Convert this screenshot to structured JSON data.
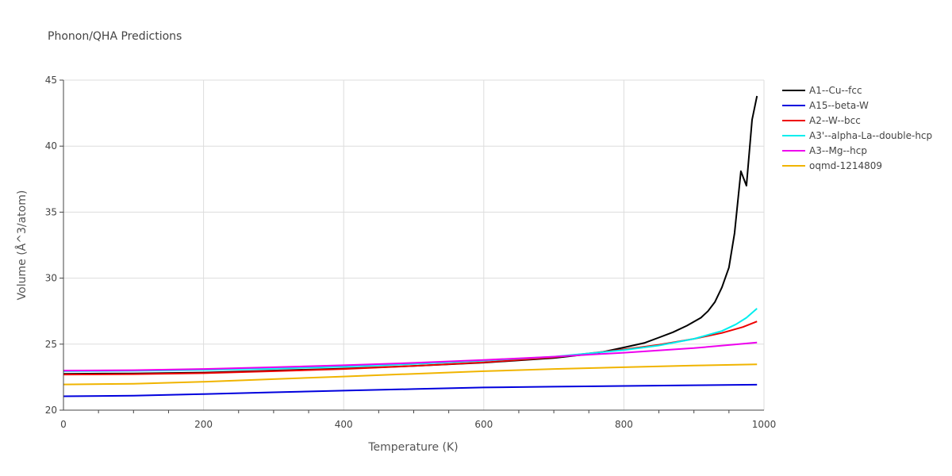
{
  "chart_data": {
    "type": "line",
    "title": "Phonon/QHA Predictions",
    "xlabel": "Temperature (K)",
    "ylabel": "Volume (Å^3/atom)",
    "xlim": [
      0,
      1000
    ],
    "ylim": [
      20,
      45
    ],
    "xticks": [
      0,
      200,
      400,
      600,
      800,
      1000
    ],
    "yticks": [
      20,
      25,
      30,
      35,
      40,
      45
    ],
    "grid": true,
    "legend_position": "right",
    "series": [
      {
        "name": "A1--Cu--fcc",
        "color": "#000000",
        "points": [
          [
            0,
            22.75
          ],
          [
            100,
            22.78
          ],
          [
            200,
            22.85
          ],
          [
            300,
            23.0
          ],
          [
            400,
            23.15
          ],
          [
            500,
            23.35
          ],
          [
            600,
            23.6
          ],
          [
            700,
            23.95
          ],
          [
            760,
            24.3
          ],
          [
            800,
            24.75
          ],
          [
            830,
            25.1
          ],
          [
            850,
            25.5
          ],
          [
            870,
            25.9
          ],
          [
            890,
            26.4
          ],
          [
            910,
            27.0
          ],
          [
            920,
            27.5
          ],
          [
            930,
            28.2
          ],
          [
            940,
            29.3
          ],
          [
            950,
            30.8
          ],
          [
            958,
            33.4
          ],
          [
            967,
            38.1
          ],
          [
            975,
            37.0
          ],
          [
            983,
            42.0
          ],
          [
            990,
            43.8
          ]
        ]
      },
      {
        "name": "A15--beta-W",
        "color": "#0000dd",
        "points": [
          [
            0,
            21.05
          ],
          [
            100,
            21.1
          ],
          [
            200,
            21.22
          ],
          [
            300,
            21.35
          ],
          [
            400,
            21.48
          ],
          [
            500,
            21.6
          ],
          [
            600,
            21.72
          ],
          [
            700,
            21.78
          ],
          [
            800,
            21.83
          ],
          [
            900,
            21.89
          ],
          [
            990,
            21.93
          ]
        ]
      },
      {
        "name": "A2--W--bcc",
        "color": "#ee0000",
        "points": [
          [
            0,
            22.7
          ],
          [
            100,
            22.73
          ],
          [
            200,
            22.8
          ],
          [
            300,
            22.95
          ],
          [
            400,
            23.12
          ],
          [
            500,
            23.35
          ],
          [
            600,
            23.62
          ],
          [
            700,
            24.0
          ],
          [
            800,
            24.6
          ],
          [
            850,
            24.95
          ],
          [
            900,
            25.4
          ],
          [
            940,
            25.85
          ],
          [
            970,
            26.3
          ],
          [
            990,
            26.72
          ]
        ]
      },
      {
        "name": "A3'--alpha-La--double-hcp",
        "color": "#00eeee",
        "points": [
          [
            0,
            22.95
          ],
          [
            100,
            22.98
          ],
          [
            200,
            23.05
          ],
          [
            300,
            23.15
          ],
          [
            400,
            23.3
          ],
          [
            500,
            23.5
          ],
          [
            600,
            23.75
          ],
          [
            700,
            24.05
          ],
          [
            800,
            24.55
          ],
          [
            850,
            24.9
          ],
          [
            900,
            25.4
          ],
          [
            940,
            26.0
          ],
          [
            960,
            26.5
          ],
          [
            975,
            27.0
          ],
          [
            990,
            27.7
          ]
        ]
      },
      {
        "name": "A3--Mg--hcp",
        "color": "#ee00ee",
        "points": [
          [
            0,
            23.0
          ],
          [
            100,
            23.03
          ],
          [
            200,
            23.12
          ],
          [
            300,
            23.25
          ],
          [
            400,
            23.4
          ],
          [
            500,
            23.58
          ],
          [
            600,
            23.8
          ],
          [
            700,
            24.05
          ],
          [
            800,
            24.35
          ],
          [
            900,
            24.7
          ],
          [
            990,
            25.12
          ]
        ]
      },
      {
        "name": "oqmd-1214809",
        "color": "#f0b400",
        "points": [
          [
            0,
            21.95
          ],
          [
            100,
            22.0
          ],
          [
            200,
            22.15
          ],
          [
            300,
            22.35
          ],
          [
            400,
            22.55
          ],
          [
            500,
            22.75
          ],
          [
            600,
            22.95
          ],
          [
            700,
            23.12
          ],
          [
            800,
            23.25
          ],
          [
            900,
            23.38
          ],
          [
            990,
            23.47
          ]
        ]
      }
    ]
  }
}
